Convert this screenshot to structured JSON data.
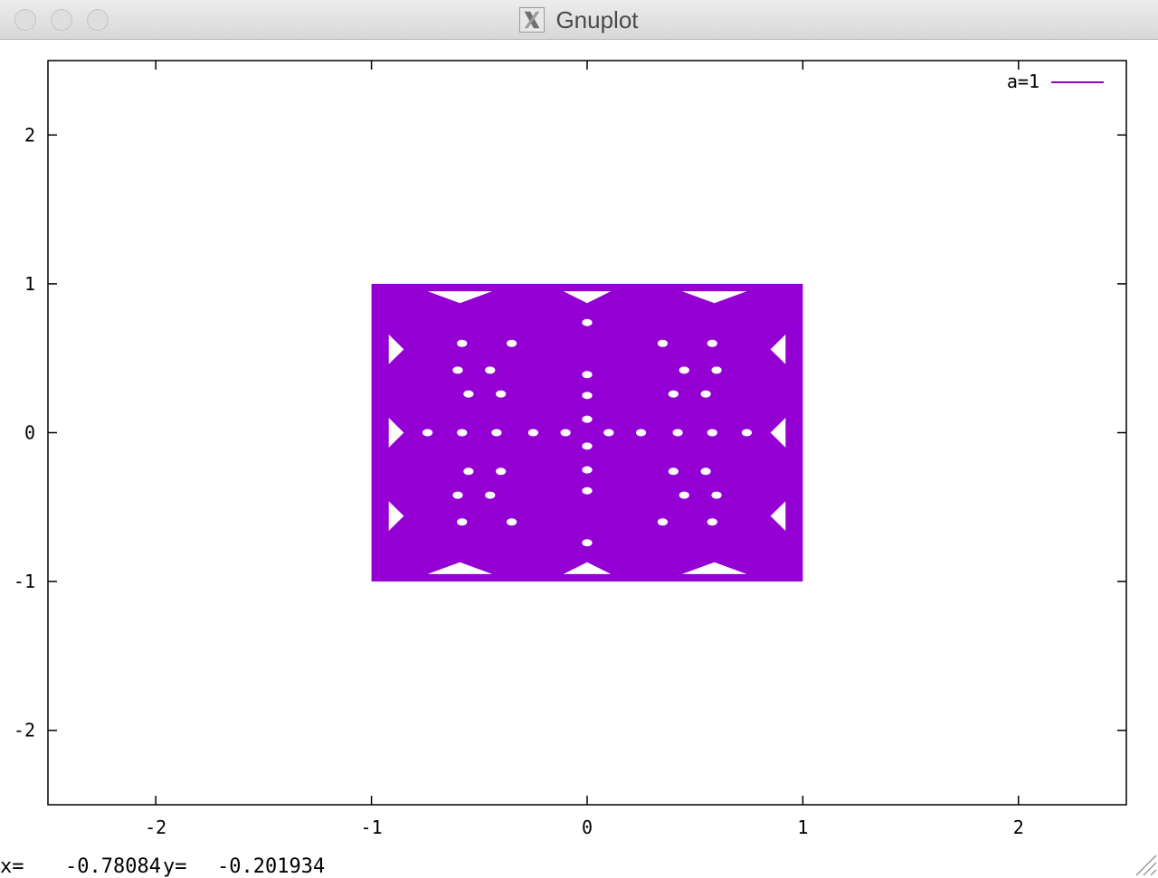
{
  "window": {
    "title": "Gnuplot",
    "icon": "x11-icon"
  },
  "status": {
    "x_label": "x=",
    "x_value": "-0.78084",
    "y_label": "y=",
    "y_value": "-0.201934"
  },
  "chart_data": {
    "type": "area",
    "xlim": [
      -2.5,
      2.5
    ],
    "ylim": [
      -2.5,
      2.5
    ],
    "x_ticks": [
      -2,
      -1,
      0,
      1,
      2
    ],
    "y_ticks": [
      -2,
      -1,
      0,
      1,
      2
    ],
    "x_tick_labels": [
      "-2",
      "-1",
      "0",
      "1",
      "2"
    ],
    "y_tick_labels": [
      "-2",
      "-1",
      "0",
      "1",
      "2"
    ],
    "grid": false,
    "legend_position": "top-right",
    "series": [
      {
        "name": "a=1",
        "color": "#9400d3",
        "x_range": [
          -1,
          1
        ],
        "y_range": [
          -1,
          1
        ]
      }
    ]
  }
}
